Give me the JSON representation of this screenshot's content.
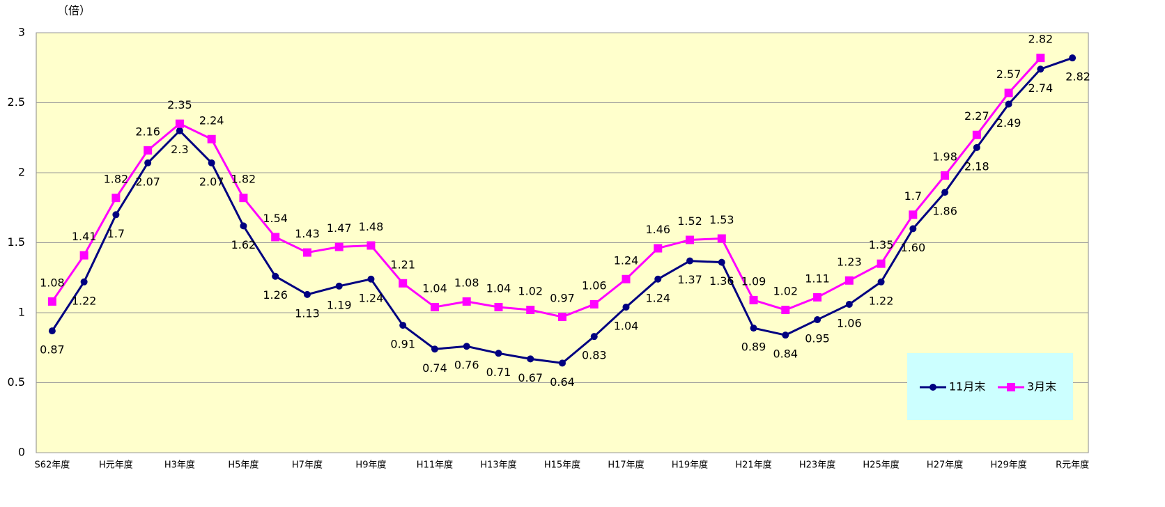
{
  "chart_data": {
    "type": "line",
    "y_unit": "（倍）",
    "categories": [
      "S62年度",
      null,
      "H元年度",
      null,
      "H3年度",
      null,
      "H5年度",
      null,
      "H7年度",
      null,
      "H9年度",
      null,
      "H11年度",
      null,
      "H13年度",
      null,
      "H15年度",
      null,
      "H17年度",
      null,
      "H19年度",
      null,
      "H21年度",
      null,
      "H23年度",
      null,
      "H25年度",
      null,
      "H27年度",
      null,
      "H29年度",
      null,
      "R元年度"
    ],
    "series": [
      {
        "name": "11月末",
        "color": "#000080",
        "marker": "circle",
        "values": [
          0.87,
          1.22,
          1.7,
          2.07,
          2.3,
          2.07,
          1.62,
          1.26,
          1.13,
          1.19,
          1.24,
          0.91,
          0.74,
          0.76,
          0.71,
          0.67,
          0.64,
          0.83,
          1.04,
          1.24,
          1.37,
          1.36,
          0.89,
          0.84,
          0.95,
          1.06,
          1.22,
          1.6,
          1.86,
          2.18,
          2.49,
          2.74,
          2.82
        ],
        "value_labels": [
          "0.87",
          "1.22",
          "1.7",
          "2.07",
          "2.3",
          "2.07",
          "1.62",
          "1.26",
          "1.13",
          "1.19",
          "1.24",
          "0.91",
          "0.74",
          "0.76",
          "0.71",
          "0.67",
          "0.64",
          "0.83",
          "1.04",
          "1.24",
          "1.37",
          "1.36",
          "0.89",
          "0.84",
          "0.95",
          "1.06",
          "1.22",
          "1.60",
          "1.86",
          "2.18",
          "2.49",
          "2.74",
          "2.82"
        ]
      },
      {
        "name": "3月末",
        "color": "#ff00ff",
        "marker": "square",
        "values": [
          1.08,
          1.41,
          1.82,
          2.16,
          2.35,
          2.24,
          1.82,
          1.54,
          1.43,
          1.47,
          1.48,
          1.21,
          1.04,
          1.08,
          1.04,
          1.02,
          0.97,
          1.06,
          1.24,
          1.46,
          1.52,
          1.53,
          1.09,
          1.02,
          1.11,
          1.23,
          1.35,
          1.7,
          1.98,
          2.27,
          2.57,
          2.82,
          null
        ]
      }
    ],
    "ylim": [
      0,
      3
    ],
    "yticks": [
      0,
      0.5,
      1,
      1.5,
      2,
      2.5,
      3
    ],
    "grid": true,
    "legend": "lower right"
  }
}
